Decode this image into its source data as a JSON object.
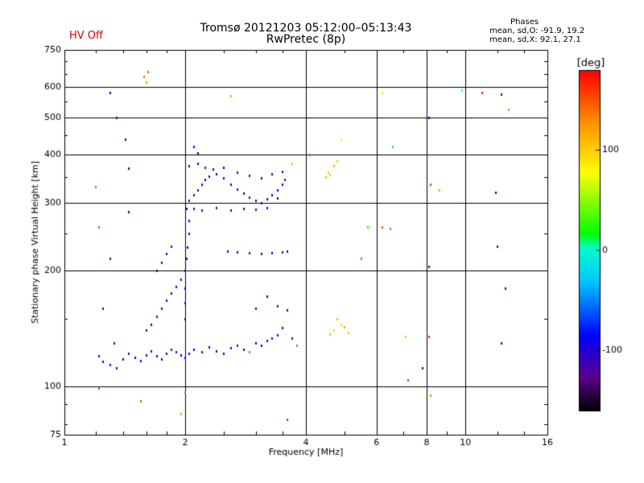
{
  "header": {
    "hv_status": "HV Off",
    "title_line1": "Tromsø 20121203 05:12:00–05:13:43",
    "title_line2": "RwPretec (8p)"
  },
  "phases_box": {
    "title": "Phases",
    "o_mode": "mean, sd,O: -91.9, 19.2",
    "x_mode": "mean, sd,X: 92.1, 27.1"
  },
  "colorbar": {
    "unit": "[deg]",
    "min": -160,
    "max": 180,
    "ticks": [
      {
        "value": 100,
        "label": "100"
      },
      {
        "value": 0,
        "label": "0"
      },
      {
        "value": -100,
        "label": "-100"
      }
    ]
  },
  "chart_data": {
    "type": "scatter",
    "title": "",
    "xlabel": "Frequency [MHz]",
    "ylabel": "Stationary phase Virtual Height [km]",
    "xscale": "log",
    "yscale": "log",
    "xlim": [
      1,
      16
    ],
    "ylim": [
      75,
      750
    ],
    "xticks": [
      1,
      2,
      4,
      6,
      8,
      10,
      16
    ],
    "yticks": [
      75,
      100,
      200,
      300,
      400,
      500,
      600,
      750
    ],
    "grid": true,
    "color_encoding": "phase in degrees",
    "points": [
      [
        1.22,
        120,
        -110
      ],
      [
        1.25,
        116,
        -100
      ],
      [
        1.3,
        114,
        -105
      ],
      [
        1.35,
        112,
        -90
      ],
      [
        1.4,
        118,
        -95
      ],
      [
        1.45,
        122,
        -120
      ],
      [
        1.5,
        119,
        -85
      ],
      [
        1.55,
        117,
        -100
      ],
      [
        1.6,
        121,
        -95
      ],
      [
        1.65,
        124,
        -110
      ],
      [
        1.7,
        120,
        -90
      ],
      [
        1.75,
        118,
        -100
      ],
      [
        1.8,
        122,
        -115
      ],
      [
        1.85,
        125,
        -95
      ],
      [
        1.9,
        123,
        -100
      ],
      [
        1.95,
        121,
        -90
      ],
      [
        2.0,
        119,
        -105
      ],
      [
        2.05,
        122,
        -100
      ],
      [
        2.1,
        125,
        -95
      ],
      [
        2.2,
        123,
        -110
      ],
      [
        2.3,
        127,
        -100
      ],
      [
        2.4,
        124,
        -85
      ],
      [
        2.5,
        122,
        -95
      ],
      [
        2.6,
        126,
        -100
      ],
      [
        2.7,
        128,
        -110
      ],
      [
        2.8,
        125,
        -95
      ],
      [
        2.9,
        123,
        -40
      ],
      [
        3.0,
        130,
        -100
      ],
      [
        3.1,
        128,
        -95
      ],
      [
        3.2,
        132,
        -110
      ],
      [
        3.3,
        134,
        -100
      ],
      [
        3.4,
        136,
        -95
      ],
      [
        1.6,
        140,
        -100
      ],
      [
        1.65,
        145,
        -95
      ],
      [
        1.7,
        152,
        -110
      ],
      [
        1.75,
        160,
        -100
      ],
      [
        1.8,
        168,
        -90
      ],
      [
        1.85,
        175,
        -105
      ],
      [
        1.9,
        182,
        -100
      ],
      [
        1.95,
        190,
        -95
      ],
      [
        1.7,
        200,
        -110
      ],
      [
        1.75,
        210,
        -100
      ],
      [
        1.8,
        222,
        -95
      ],
      [
        1.85,
        232,
        -120
      ],
      [
        2.0,
        150,
        -100
      ],
      [
        2.0,
        165,
        -95
      ],
      [
        2.0,
        180,
        -105
      ],
      [
        2.0,
        200,
        -100
      ],
      [
        2.02,
        215,
        -110
      ],
      [
        2.03,
        230,
        -95
      ],
      [
        2.05,
        250,
        -100
      ],
      [
        2.05,
        270,
        -90
      ],
      [
        2.02,
        290,
        -105
      ],
      [
        2.05,
        305,
        -100
      ],
      [
        2.1,
        315,
        -95
      ],
      [
        2.15,
        325,
        -110
      ],
      [
        2.2,
        335,
        -100
      ],
      [
        2.25,
        345,
        -90
      ],
      [
        2.3,
        352,
        -105
      ],
      [
        2.4,
        358,
        -100
      ],
      [
        2.5,
        348,
        -95
      ],
      [
        2.6,
        336,
        -110
      ],
      [
        2.7,
        326,
        -100
      ],
      [
        2.8,
        318,
        -95
      ],
      [
        2.9,
        310,
        -105
      ],
      [
        3.0,
        304,
        -100
      ],
      [
        3.1,
        300,
        -90
      ],
      [
        3.2,
        307,
        -110
      ],
      [
        3.3,
        315,
        -100
      ],
      [
        3.4,
        325,
        -95
      ],
      [
        3.5,
        335,
        -105
      ],
      [
        3.55,
        345,
        -100
      ],
      [
        2.1,
        290,
        -95
      ],
      [
        2.2,
        288,
        -100
      ],
      [
        2.4,
        292,
        -110
      ],
      [
        2.6,
        287,
        -100
      ],
      [
        2.8,
        291,
        -95
      ],
      [
        3.0,
        289,
        -105
      ],
      [
        3.2,
        292,
        -100
      ],
      [
        3.4,
        309,
        -90
      ],
      [
        2.05,
        375,
        -100
      ],
      [
        2.15,
        380,
        -95
      ],
      [
        2.25,
        372,
        -110
      ],
      [
        2.35,
        368,
        -100
      ],
      [
        2.5,
        372,
        -95
      ],
      [
        2.7,
        360,
        -105
      ],
      [
        2.9,
        353,
        -100
      ],
      [
        3.1,
        348,
        -90
      ],
      [
        3.3,
        358,
        -105
      ],
      [
        3.5,
        362,
        -100
      ],
      [
        2.1,
        420,
        -95
      ],
      [
        2.15,
        405,
        -100
      ],
      [
        2.55,
        225,
        -100
      ],
      [
        2.7,
        224,
        -95
      ],
      [
        2.9,
        223,
        -110
      ],
      [
        3.1,
        222,
        -100
      ],
      [
        3.3,
        223,
        -95
      ],
      [
        3.5,
        224,
        -105
      ],
      [
        3.6,
        225,
        -100
      ],
      [
        3.0,
        160,
        -100
      ],
      [
        3.2,
        172,
        -95
      ],
      [
        3.4,
        162,
        -110
      ],
      [
        3.6,
        158,
        -100
      ],
      [
        3.5,
        142,
        -95
      ],
      [
        3.7,
        134,
        -105
      ],
      [
        3.8,
        128,
        -40
      ],
      [
        4.5,
        350,
        110
      ],
      [
        4.55,
        360,
        105
      ],
      [
        4.6,
        356,
        95
      ],
      [
        4.7,
        375,
        115
      ],
      [
        4.8,
        385,
        100
      ],
      [
        4.9,
        440,
        90
      ],
      [
        4.8,
        150,
        110
      ],
      [
        4.9,
        145,
        100
      ],
      [
        5.0,
        143,
        120
      ],
      [
        5.1,
        138,
        105
      ],
      [
        4.7,
        140,
        95
      ],
      [
        4.6,
        137,
        110
      ],
      [
        1.58,
        640,
        140
      ],
      [
        1.6,
        620,
        130
      ],
      [
        1.62,
        660,
        150
      ],
      [
        1.2,
        330,
        140
      ],
      [
        1.22,
        260,
        150
      ],
      [
        1.22,
        99,
        160
      ],
      [
        1.3,
        580,
        -100
      ],
      [
        1.35,
        500,
        -110
      ],
      [
        1.42,
        440,
        -100
      ],
      [
        1.45,
        370,
        -100
      ],
      [
        1.45,
        285,
        -95
      ],
      [
        1.3,
        215,
        -105
      ],
      [
        1.25,
        160,
        -100
      ],
      [
        1.33,
        130,
        -110
      ],
      [
        1.55,
        92,
        150
      ],
      [
        1.95,
        85,
        120
      ],
      [
        2.0,
        97,
        140
      ],
      [
        2.6,
        570,
        120
      ],
      [
        3.6,
        82,
        170
      ],
      [
        3.7,
        380,
        110
      ],
      [
        6.2,
        580,
        90
      ],
      [
        6.2,
        260,
        150
      ],
      [
        6.5,
        258,
        140
      ],
      [
        6.6,
        420,
        -20
      ],
      [
        7.1,
        135,
        110
      ],
      [
        7.2,
        104,
        160
      ],
      [
        7.8,
        112,
        -130
      ],
      [
        8.1,
        500,
        -100
      ],
      [
        8.1,
        205,
        -110
      ],
      [
        8.1,
        135,
        170
      ],
      [
        8.2,
        95,
        130
      ],
      [
        8.2,
        335,
        160
      ],
      [
        8.6,
        325,
        120
      ],
      [
        9.8,
        590,
        0
      ],
      [
        11.0,
        580,
        170
      ],
      [
        12.3,
        575,
        -100
      ],
      [
        12.8,
        525,
        130
      ],
      [
        11.9,
        320,
        -100
      ],
      [
        12.0,
        232,
        -100
      ],
      [
        12.3,
        130,
        -110
      ],
      [
        12.6,
        180,
        -100
      ],
      [
        5.5,
        215,
        -40
      ],
      [
        5.7,
        260,
        20
      ],
      [
        4.1,
        400,
        -40
      ]
    ]
  }
}
